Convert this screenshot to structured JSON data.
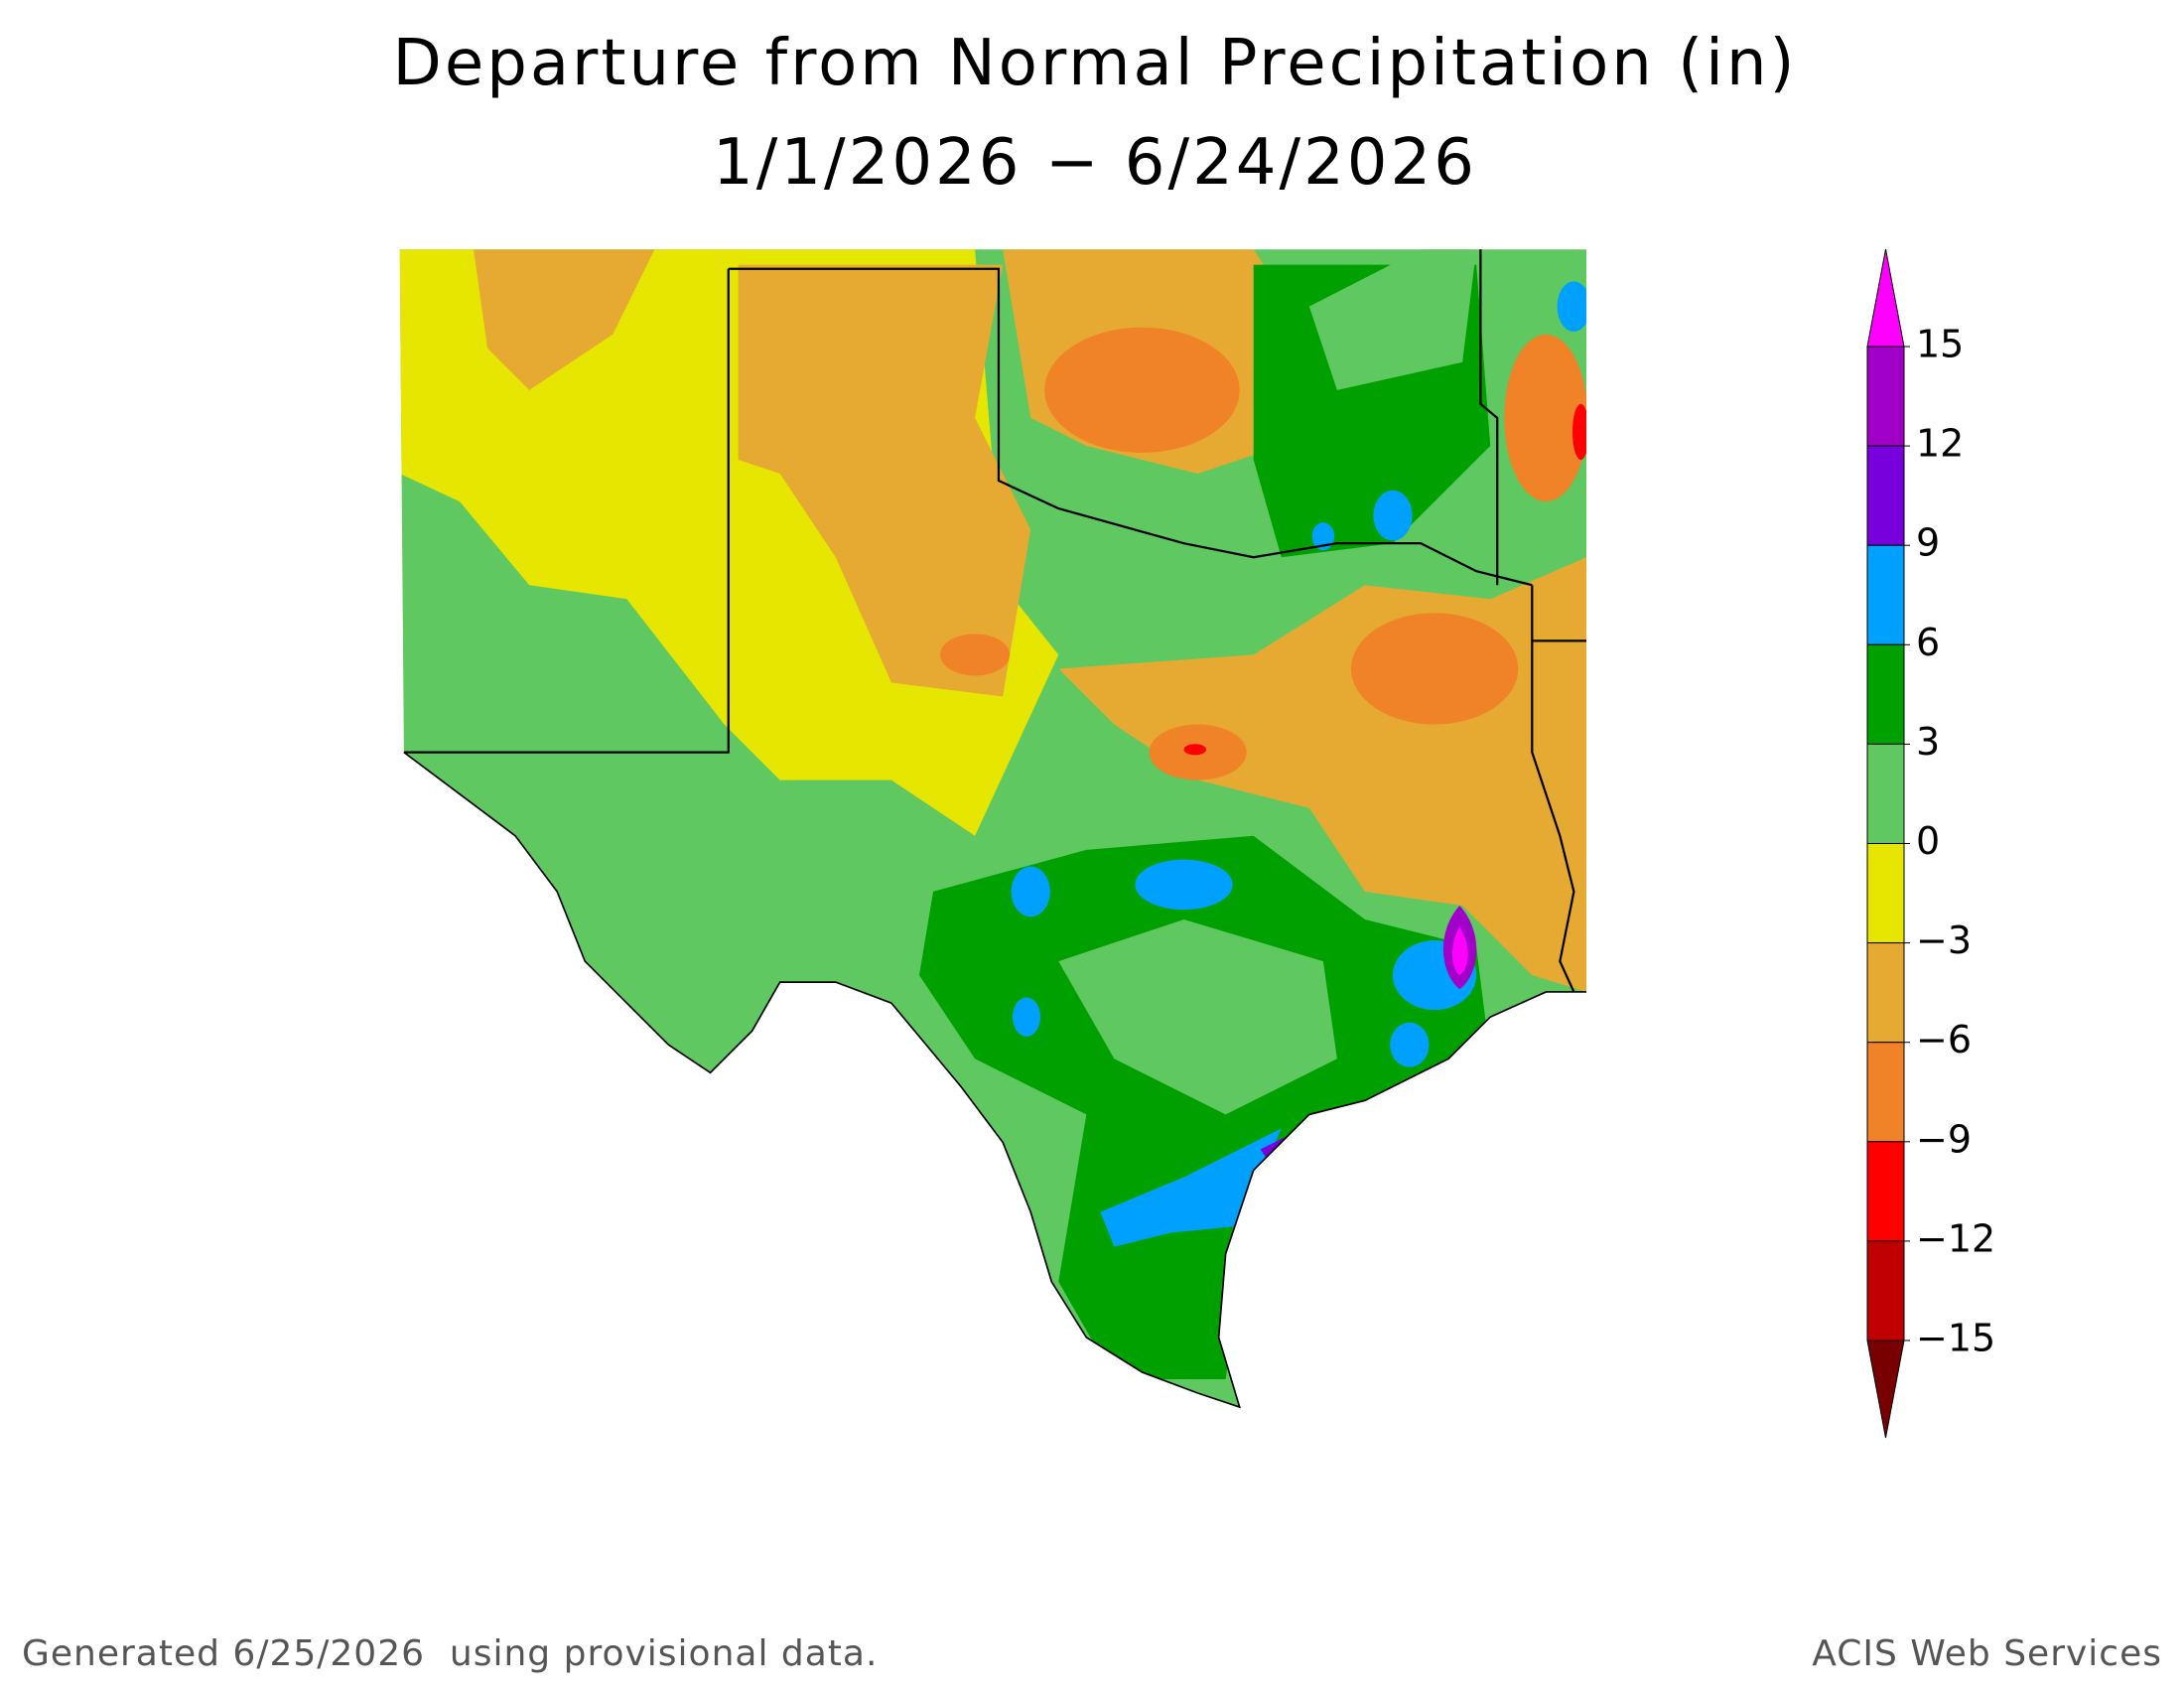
{
  "header": {
    "title_lines": [
      "Departure from Normal Precipitation (in)",
      "1/1/2026 − 6/24/2026"
    ]
  },
  "legend": {
    "ticks": [
      {
        "value": 15,
        "label": "15"
      },
      {
        "value": 12,
        "label": "12"
      },
      {
        "value": 9,
        "label": "9"
      },
      {
        "value": 6,
        "label": "6"
      },
      {
        "value": 3,
        "label": "3"
      },
      {
        "value": 0,
        "label": "0"
      },
      {
        "value": -3,
        "label": "−3"
      },
      {
        "value": -6,
        "label": "−6"
      },
      {
        "value": -9,
        "label": "−9"
      },
      {
        "value": -12,
        "label": "−12"
      },
      {
        "value": -15,
        "label": "−15"
      }
    ],
    "colors": [
      "#ff00ff",
      "#a000c8",
      "#7800dc",
      "#00a0ff",
      "#00a000",
      "#60c860",
      "#e6e600",
      "#e6aa32",
      "#f08228",
      "#ff0000",
      "#c00000",
      "#780000"
    ]
  },
  "footer": {
    "left": "Generated 6/25/2026  using provisional data.",
    "right": "ACIS Web Services"
  }
}
